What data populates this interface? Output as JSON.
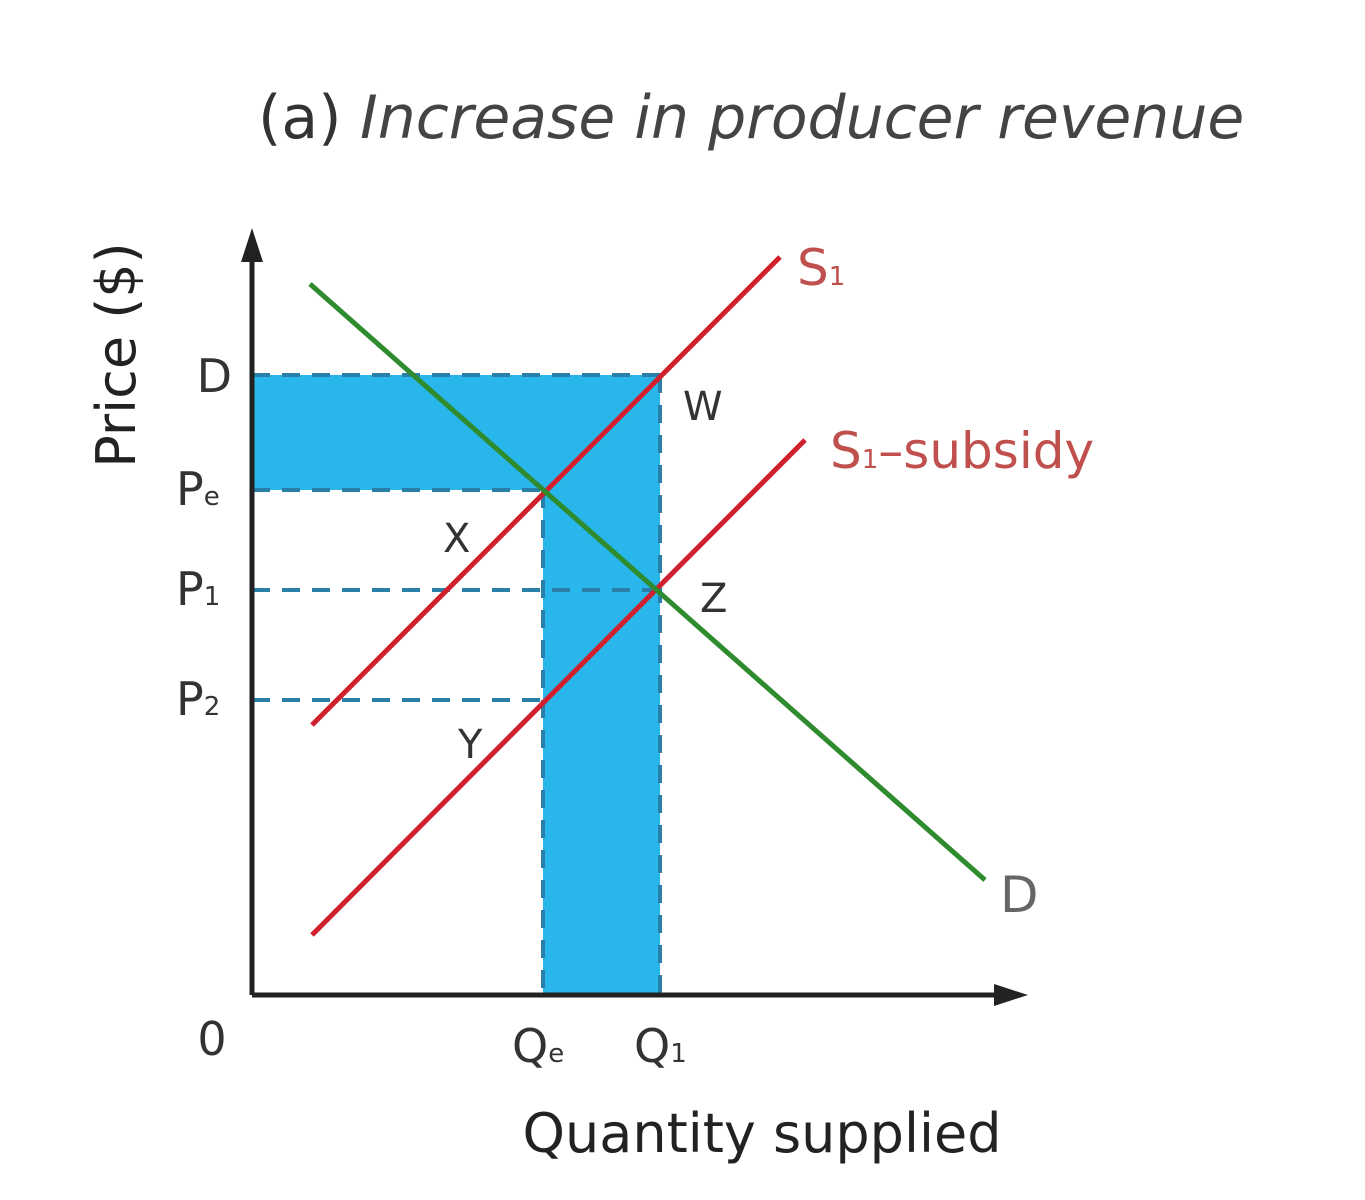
{
  "title": {
    "prefix": "(a)",
    "text": "Increase in producer revenue"
  },
  "axes": {
    "y_label": "Price ($)",
    "x_label": "Quantity supplied",
    "origin": "0"
  },
  "price_ticks": [
    {
      "main": "D",
      "sub": ""
    },
    {
      "main": "P",
      "sub": "e"
    },
    {
      "main": "P",
      "sub": "1"
    },
    {
      "main": "P",
      "sub": "2"
    }
  ],
  "quantity_ticks": [
    {
      "main": "Q",
      "sub": "e"
    },
    {
      "main": "Q",
      "sub": "1"
    }
  ],
  "curves": {
    "supply": {
      "main": "S",
      "sub": "1",
      "suffix": "",
      "color": "#d0202e"
    },
    "supply_subsidy": {
      "main": "S",
      "sub": "1",
      "suffix": "–subsidy",
      "color": "#d0202e"
    },
    "demand": {
      "main": "D",
      "color": "#2e8b2e"
    }
  },
  "points": [
    "W",
    "X",
    "Z",
    "Y"
  ],
  "colors": {
    "shaded_area": "#29b6ea",
    "dashed": "#2a7fa8",
    "axis": "#222222",
    "label_red": "#c0504d"
  }
}
